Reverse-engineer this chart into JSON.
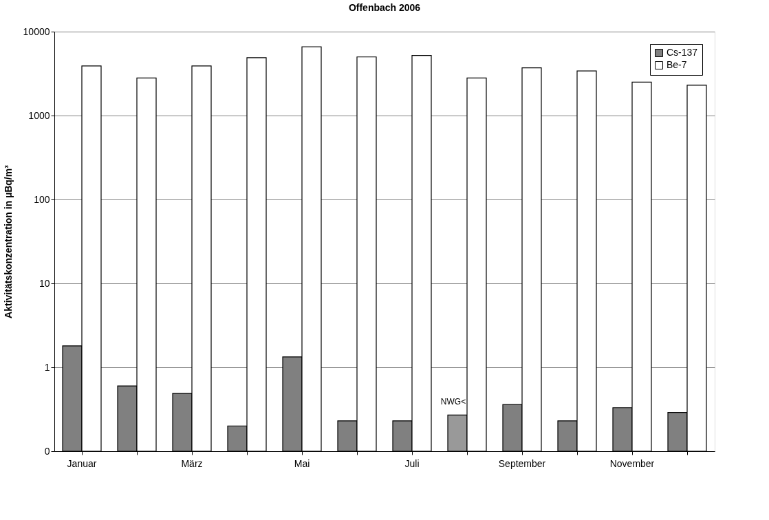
{
  "chart_data": {
    "type": "bar",
    "title": "Offenbach 2006",
    "ylabel": "Aktivitätskonzentration in µBq/m³",
    "categories": [
      "Januar",
      null,
      "März",
      null,
      "Mai",
      null,
      "Juli",
      null,
      "September",
      null,
      "November",
      null
    ],
    "series": [
      {
        "name": "Cs-137",
        "color": "#808080",
        "colors": [
          "#808080",
          "#808080",
          "#808080",
          "#808080",
          "#808080",
          "#808080",
          "#808080",
          "#999999",
          "#808080",
          "#808080",
          "#808080",
          "#808080"
        ],
        "values": [
          1.8,
          0.6,
          0.49,
          0.2,
          1.33,
          0.23,
          0.23,
          0.27,
          0.36,
          0.23,
          0.33,
          0.29
        ]
      },
      {
        "name": "Be-7",
        "color": "#ffffff",
        "values": [
          3900,
          2800,
          3900,
          4900,
          6600,
          5000,
          5200,
          2800,
          3700,
          3400,
          2500,
          2300
        ]
      }
    ],
    "log": true,
    "ylim": [
      0.1,
      10000
    ],
    "yticks": [
      {
        "value": 0.1,
        "label": "0"
      },
      1,
      10,
      100,
      1000,
      10000
    ],
    "grid": "y",
    "legend": "top right",
    "annotations": [
      "NWG<"
    ]
  }
}
